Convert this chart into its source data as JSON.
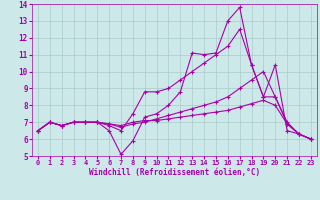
{
  "xlabel": "Windchill (Refroidissement éolien,°C)",
  "background_color": "#cce8e8",
  "line_color": "#aa00aa",
  "grid_color": "#aacccc",
  "xlim": [
    -0.5,
    23.5
  ],
  "ylim": [
    5,
    14
  ],
  "xticks": [
    0,
    1,
    2,
    3,
    4,
    5,
    6,
    7,
    8,
    9,
    10,
    11,
    12,
    13,
    14,
    15,
    16,
    17,
    18,
    19,
    20,
    21,
    22,
    23
  ],
  "yticks": [
    5,
    6,
    7,
    8,
    9,
    10,
    11,
    12,
    13,
    14
  ],
  "lines": [
    {
      "x": [
        0,
        1,
        2,
        3,
        4,
        5,
        6,
        7,
        8,
        9,
        10,
        11,
        12,
        13,
        14,
        15,
        16,
        17,
        18,
        19,
        20,
        21,
        22,
        23
      ],
      "y": [
        6.5,
        7.0,
        6.8,
        7.0,
        7.0,
        7.0,
        6.5,
        5.1,
        5.9,
        7.3,
        7.5,
        8.0,
        8.8,
        11.1,
        11.0,
        11.1,
        13.0,
        13.8,
        10.4,
        8.5,
        10.4,
        6.5,
        6.3,
        6.0
      ]
    },
    {
      "x": [
        0,
        1,
        2,
        3,
        4,
        5,
        6,
        7,
        8,
        9,
        10,
        11,
        12,
        13,
        14,
        15,
        16,
        17,
        18,
        19,
        20,
        21,
        22,
        23
      ],
      "y": [
        6.5,
        7.0,
        6.8,
        7.0,
        7.0,
        7.0,
        6.8,
        6.5,
        7.5,
        8.8,
        8.8,
        9.0,
        9.5,
        10.0,
        10.5,
        11.0,
        11.5,
        12.5,
        10.4,
        8.5,
        8.5,
        7.0,
        6.3,
        6.0
      ]
    },
    {
      "x": [
        0,
        1,
        2,
        3,
        4,
        5,
        6,
        7,
        8,
        9,
        10,
        11,
        12,
        13,
        14,
        15,
        16,
        17,
        18,
        19,
        20,
        21,
        22,
        23
      ],
      "y": [
        6.5,
        7.0,
        6.8,
        7.0,
        7.0,
        7.0,
        6.9,
        6.7,
        6.9,
        7.0,
        7.2,
        7.4,
        7.6,
        7.8,
        8.0,
        8.2,
        8.5,
        9.0,
        9.5,
        10.0,
        8.5,
        6.9,
        6.3,
        6.0
      ]
    },
    {
      "x": [
        0,
        1,
        2,
        3,
        4,
        5,
        6,
        7,
        8,
        9,
        10,
        11,
        12,
        13,
        14,
        15,
        16,
        17,
        18,
        19,
        20,
        21,
        22,
        23
      ],
      "y": [
        6.5,
        7.0,
        6.8,
        7.0,
        7.0,
        7.0,
        6.9,
        6.8,
        7.0,
        7.1,
        7.1,
        7.2,
        7.3,
        7.4,
        7.5,
        7.6,
        7.7,
        7.9,
        8.1,
        8.3,
        8.0,
        6.9,
        6.3,
        6.0
      ]
    }
  ]
}
